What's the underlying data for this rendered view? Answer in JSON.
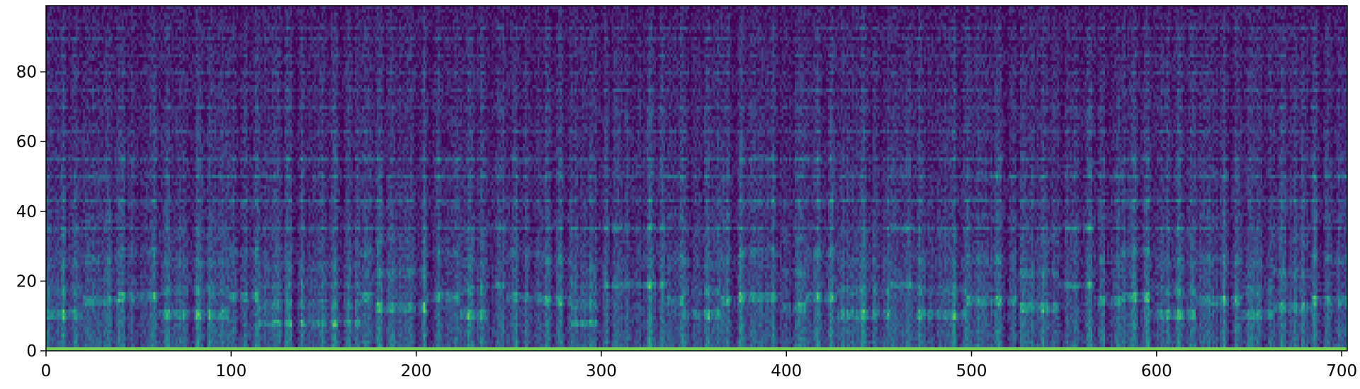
{
  "chart_data": {
    "type": "heatmap",
    "title": "",
    "xlabel": "",
    "ylabel": "",
    "xlim": [
      0,
      703
    ],
    "ylim": [
      0,
      99
    ],
    "x_ticks": [
      0,
      100,
      200,
      300,
      400,
      500,
      600,
      700
    ],
    "y_ticks": [
      0,
      20,
      40,
      60,
      80
    ],
    "x_tick_labels": [
      "0",
      "100",
      "200",
      "300",
      "400",
      "500",
      "600",
      "700"
    ],
    "y_tick_labels": [
      "0",
      "20",
      "40",
      "60",
      "80"
    ],
    "grid": false,
    "legend": "none",
    "colormap": "viridis",
    "colormap_colors": [
      "#440154",
      "#3b528b",
      "#21918c",
      "#5ec962",
      "#fde725"
    ],
    "description_of_values": "spectrogram-like intensity; bands of higher intensity at bins ~0-32 and harmonics near 35, 43, 50, 55, 63, 70"
  }
}
